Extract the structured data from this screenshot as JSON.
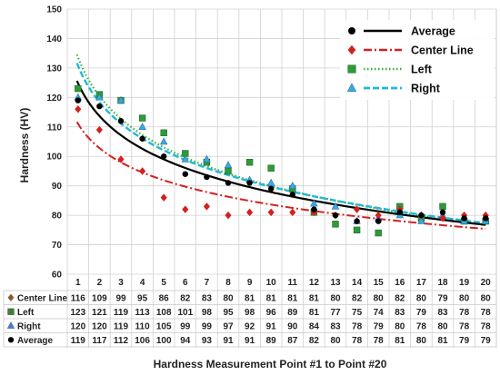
{
  "chart_data": {
    "type": "scatter",
    "title": "",
    "xlabel": "Hardness Measurement Point #1 to Point #20",
    "ylabel": "Hardness (HV)",
    "ylim": [
      60,
      150
    ],
    "yticks": [
      60,
      70,
      80,
      90,
      100,
      110,
      120,
      130,
      140,
      150
    ],
    "x": [
      1,
      2,
      3,
      4,
      5,
      6,
      7,
      8,
      9,
      10,
      11,
      12,
      13,
      14,
      15,
      16,
      17,
      18,
      19,
      20
    ],
    "grid": true,
    "legend_position": "top-right",
    "series": [
      {
        "name": "Center Line",
        "marker": "diamond",
        "color": "#d42020",
        "marker_color": "#d42020",
        "table_marker_color": "#8b5a2b",
        "values": [
          116,
          109,
          99,
          95,
          86,
          82,
          83,
          80,
          81,
          81,
          81,
          81,
          80,
          82,
          80,
          82,
          80,
          79,
          80,
          80
        ]
      },
      {
        "name": "Left",
        "marker": "square",
        "color": "#33b040",
        "marker_color": "#2e9a3a",
        "table_marker_color": "#4a7a3a",
        "values": [
          123,
          121,
          119,
          113,
          108,
          101,
          98,
          95,
          98,
          96,
          89,
          81,
          77,
          75,
          74,
          83,
          79,
          83,
          78,
          78
        ]
      },
      {
        "name": "Right",
        "marker": "triangle",
        "color": "#22b8d8",
        "marker_color": "#3aaae0",
        "table_marker_color": "#5a78c8",
        "values": [
          120,
          120,
          119,
          110,
          105,
          99,
          99,
          97,
          92,
          91,
          90,
          84,
          83,
          78,
          79,
          80,
          78,
          80,
          78,
          78
        ]
      },
      {
        "name": "Average",
        "marker": "circle",
        "color": "#000000",
        "marker_color": "#000000",
        "table_marker_color": "#000000",
        "values": [
          119,
          117,
          112,
          106,
          100,
          94,
          93,
          91,
          91,
          89,
          87,
          82,
          80,
          78,
          78,
          81,
          80,
          81,
          79,
          79
        ]
      }
    ],
    "table_row_order": [
      "Center Line",
      "Left",
      "Right",
      "Average"
    ],
    "legend_order": [
      "Average",
      "Center Line",
      "Left",
      "Right"
    ]
  }
}
